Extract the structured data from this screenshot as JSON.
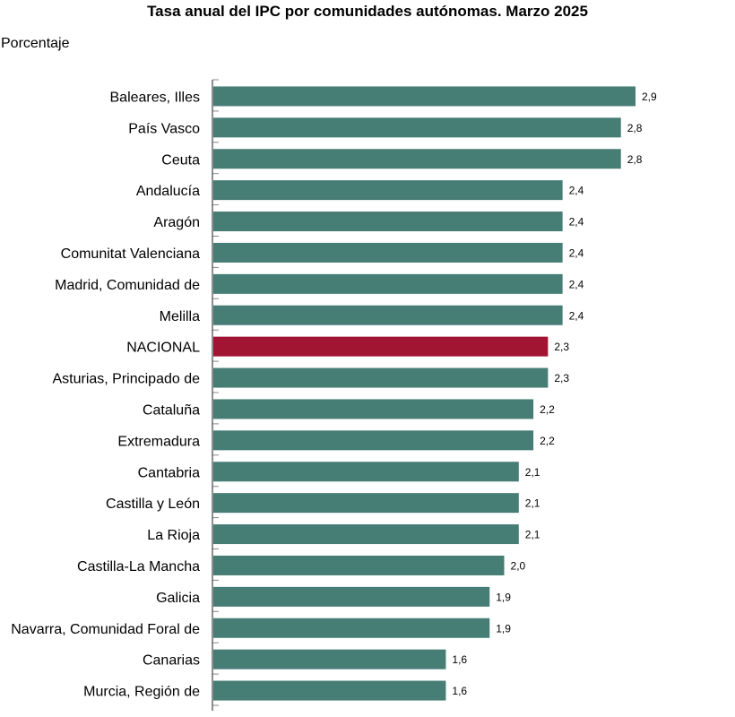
{
  "chart_data": {
    "type": "bar",
    "orientation": "horizontal",
    "title": "Tasa anual del IPC por comunidades autónomas. Marzo 2025",
    "ylabel": "Porcentaje",
    "xlim": [
      0,
      2.9
    ],
    "grid": false,
    "categories": [
      "Baleares, Illes",
      "País Vasco",
      "Ceuta",
      "Andalucía",
      "Aragón",
      "Comunitat Valenciana",
      "Madrid, Comunidad de",
      "Melilla",
      "NACIONAL",
      "Asturias, Principado de",
      "Cataluña",
      "Extremadura",
      "Cantabria",
      "Castilla y León",
      "La Rioja",
      "Castilla-La Mancha",
      "Galicia",
      "Navarra, Comunidad Foral de",
      "Canarias",
      "Murcia, Región de"
    ],
    "values": [
      2.9,
      2.8,
      2.8,
      2.4,
      2.4,
      2.4,
      2.4,
      2.4,
      2.3,
      2.3,
      2.2,
      2.2,
      2.1,
      2.1,
      2.1,
      2.0,
      1.9,
      1.9,
      1.6,
      1.6
    ],
    "value_labels": [
      "2,9",
      "2,8",
      "2,8",
      "2,4",
      "2,4",
      "2,4",
      "2,4",
      "2,4",
      "2,3",
      "2,3",
      "2,2",
      "2,2",
      "2,1",
      "2,1",
      "2,1",
      "2,0",
      "1,9",
      "1,9",
      "1,6",
      "1,6"
    ],
    "highlight_category": "NACIONAL",
    "colors": {
      "bar": "#467d74",
      "highlight": "#a11532",
      "axis": "#444444"
    }
  }
}
